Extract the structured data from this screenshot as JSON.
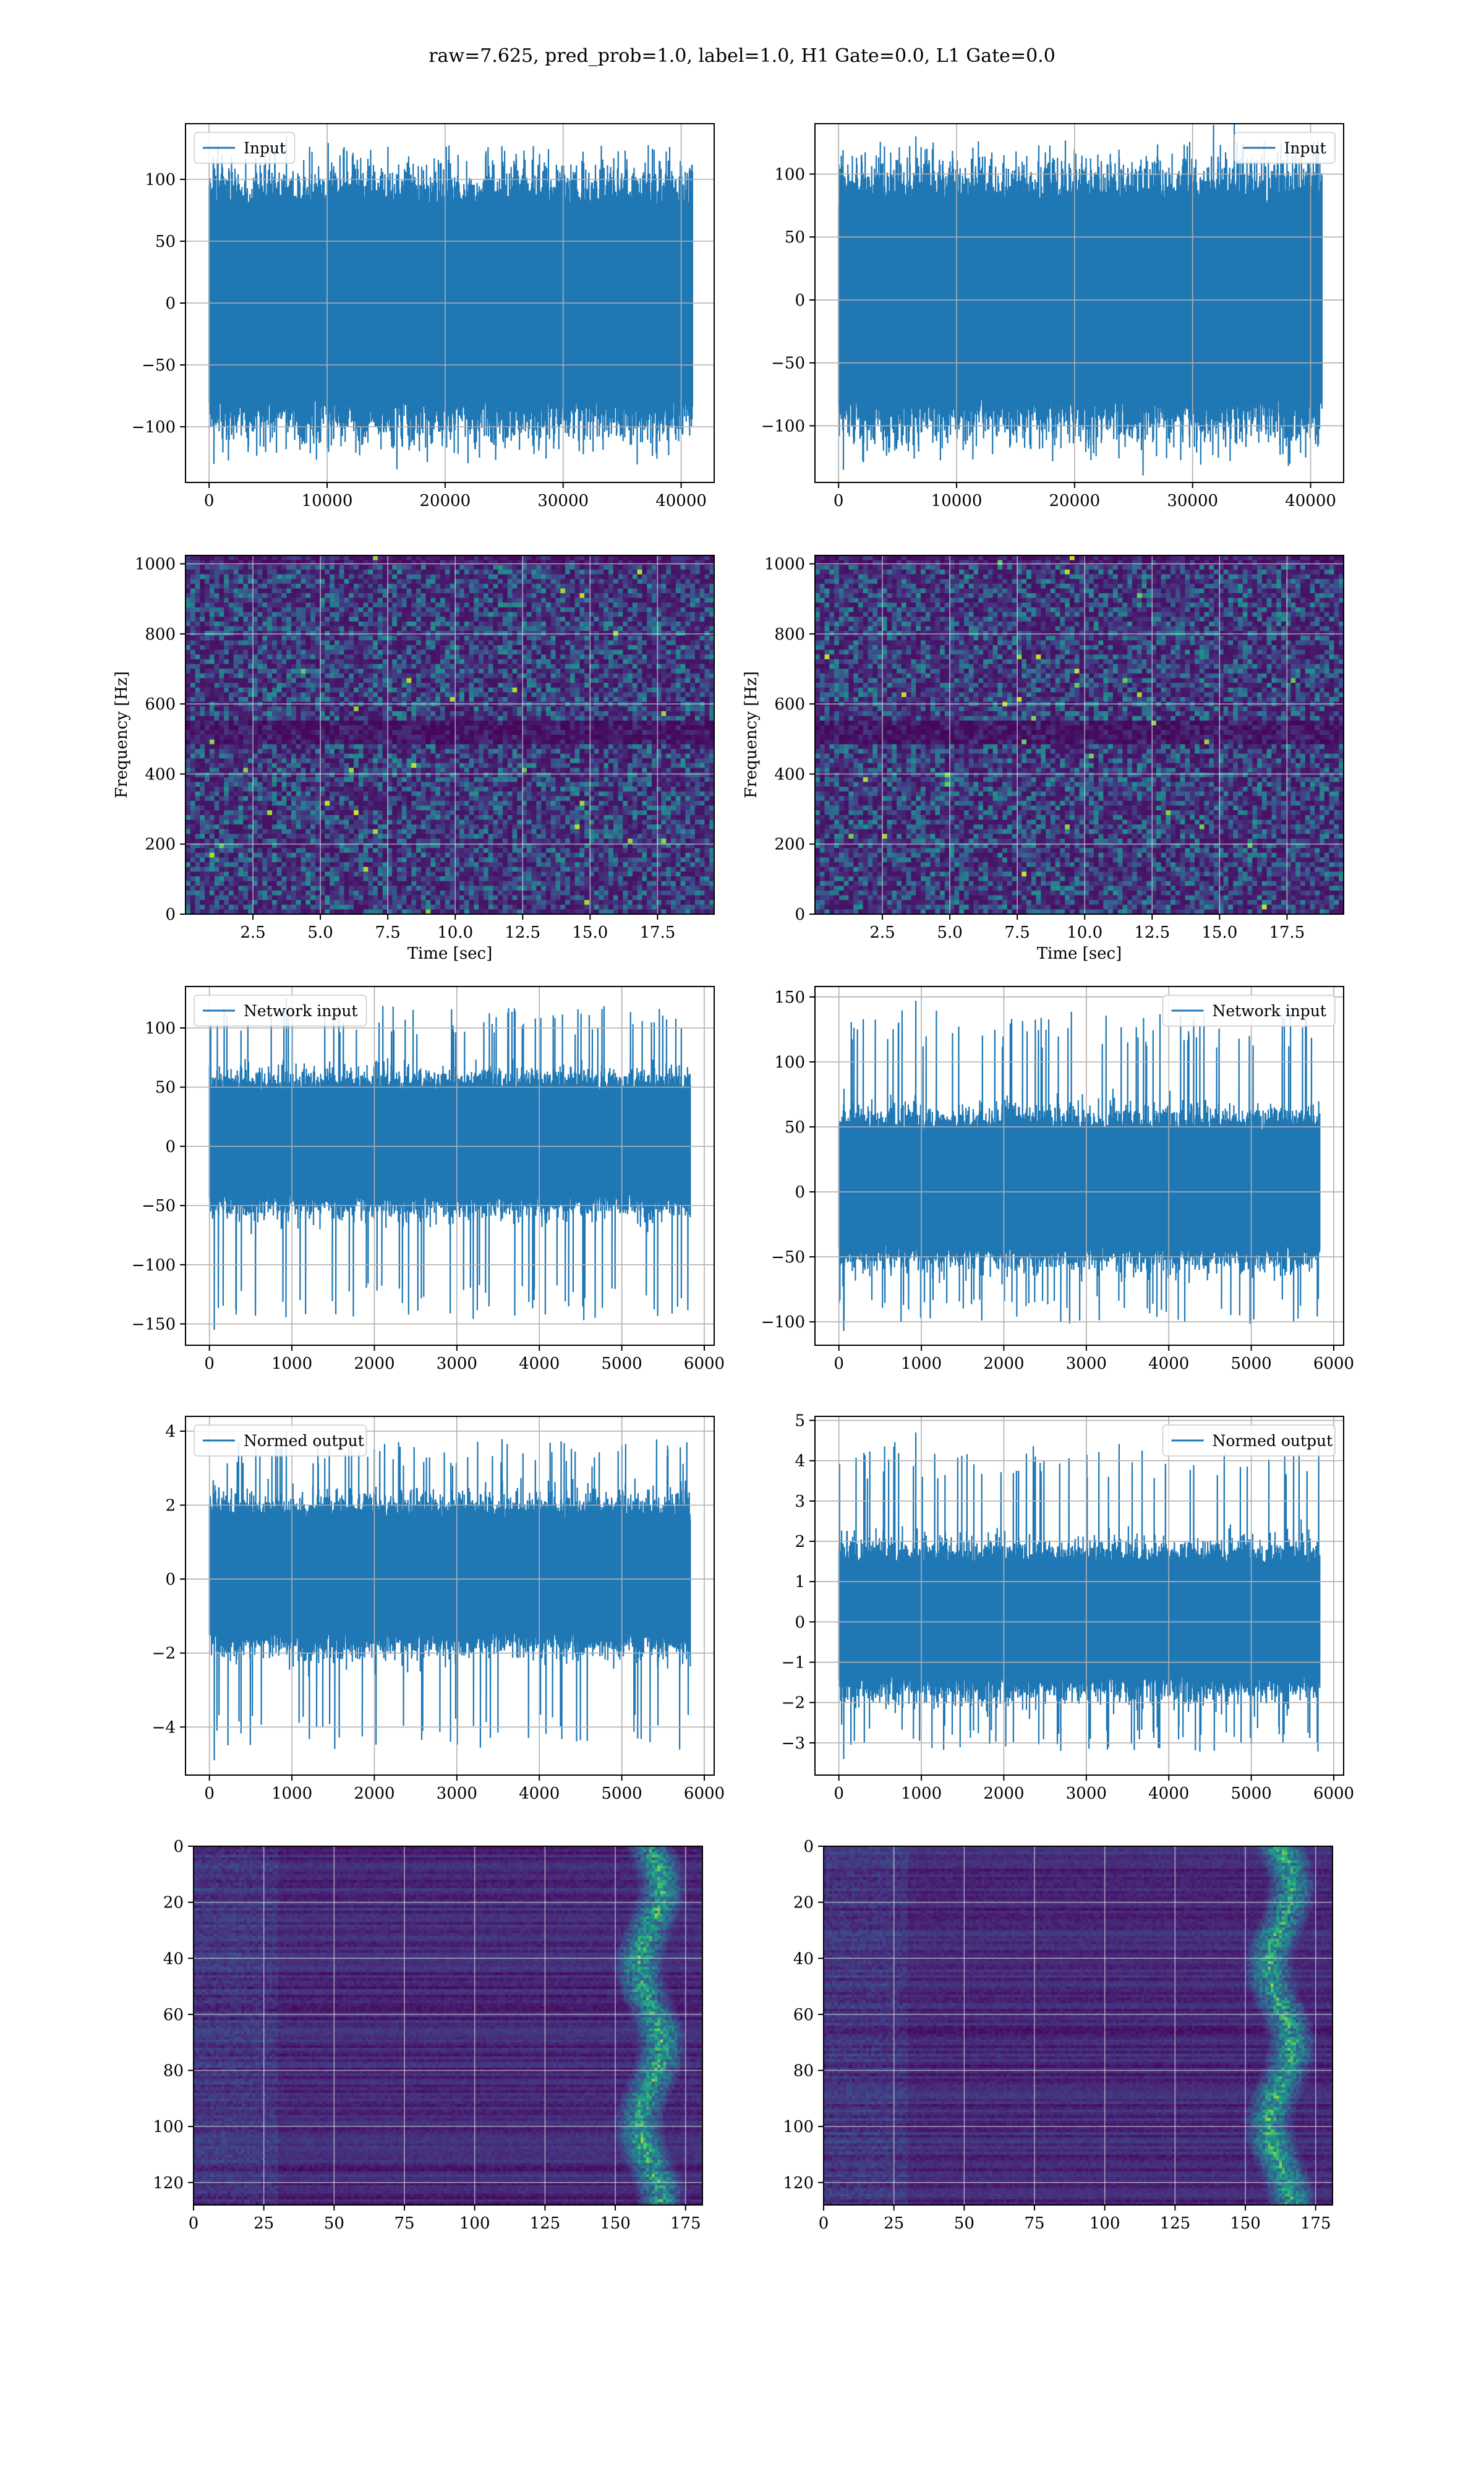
{
  "figure": {
    "title": "raw=7.625, pred_prob=1.0, label=1.0, H1 Gate=0.0, L1 Gate=0.0",
    "series_color": "#1f77b4",
    "heatmap_colormap": "viridis"
  },
  "chart_data": [
    {
      "id": "input-h1",
      "type": "line",
      "legend": "Input",
      "legend_loc": "upper-left",
      "xlim": [
        -2000,
        42800
      ],
      "ylim": [
        -145,
        145
      ],
      "xticks": [
        0,
        10000,
        20000,
        30000,
        40000
      ],
      "yticks": [
        -100,
        -50,
        0,
        50,
        100
      ],
      "n": 40960,
      "band": [
        -75,
        75
      ],
      "min": -130,
      "max": 135,
      "grid": true
    },
    {
      "id": "input-l1",
      "type": "line",
      "legend": "Input",
      "legend_loc": "upper-right",
      "xlim": [
        -2000,
        42800
      ],
      "ylim": [
        -145,
        140
      ],
      "xticks": [
        0,
        10000,
        20000,
        30000,
        40000
      ],
      "yticks": [
        -100,
        -50,
        0,
        50,
        100
      ],
      "n": 40960,
      "band": [
        -75,
        75
      ],
      "min": -135,
      "max": 130,
      "grid": true
    },
    {
      "id": "spectrogram-h1",
      "type": "heatmap",
      "xlabel": "Time [sec]",
      "ylabel": "Frequency [Hz]",
      "xlim": [
        0,
        19.6
      ],
      "ylim": [
        0,
        1024
      ],
      "xticks": [
        2.5,
        5.0,
        7.5,
        10.0,
        12.5,
        15.0,
        17.5
      ],
      "xtick_labels": [
        "2.5",
        "5.0",
        "7.5",
        "10.0",
        "12.5",
        "15.0",
        "17.5"
      ],
      "yticks": [
        0,
        200,
        400,
        600,
        800,
        1000
      ],
      "grid": true
    },
    {
      "id": "spectrogram-l1",
      "type": "heatmap",
      "xlabel": "Time [sec]",
      "ylabel": "Frequency [Hz]",
      "xlim": [
        0,
        19.6
      ],
      "ylim": [
        0,
        1024
      ],
      "xticks": [
        2.5,
        5.0,
        7.5,
        10.0,
        12.5,
        15.0,
        17.5
      ],
      "xtick_labels": [
        "2.5",
        "5.0",
        "7.5",
        "10.0",
        "12.5",
        "15.0",
        "17.5"
      ],
      "yticks": [
        0,
        200,
        400,
        600,
        800,
        1000
      ],
      "grid": true
    },
    {
      "id": "network-input-h1",
      "type": "line",
      "legend": "Network input",
      "legend_loc": "upper-left",
      "xlim": [
        -290,
        6120
      ],
      "ylim": [
        -168,
        135
      ],
      "xticks": [
        0,
        1000,
        2000,
        3000,
        4000,
        5000,
        6000
      ],
      "yticks": [
        -150,
        -100,
        -50,
        0,
        50,
        100
      ],
      "n": 5830,
      "band": [
        -40,
        45
      ],
      "min": -155,
      "max": 125,
      "grid": true
    },
    {
      "id": "network-input-l1",
      "type": "line",
      "legend": "Network input",
      "legend_loc": "upper-right",
      "xlim": [
        -290,
        6120
      ],
      "ylim": [
        -118,
        158
      ],
      "xticks": [
        0,
        1000,
        2000,
        3000,
        4000,
        5000,
        6000
      ],
      "yticks": [
        -100,
        -50,
        0,
        50,
        100,
        150
      ],
      "n": 5830,
      "band": [
        -40,
        45
      ],
      "min": -107,
      "max": 147,
      "grid": true
    },
    {
      "id": "normed-output-h1",
      "type": "line",
      "legend": "Normed output",
      "legend_loc": "upper-left",
      "xlim": [
        -290,
        6120
      ],
      "ylim": [
        -5.3,
        4.4
      ],
      "xticks": [
        0,
        1000,
        2000,
        3000,
        4000,
        5000,
        6000
      ],
      "yticks": [
        -4,
        -2,
        0,
        2,
        4
      ],
      "n": 5830,
      "band": [
        -1.4,
        1.6
      ],
      "min": -4.9,
      "max": 4.0,
      "grid": true
    },
    {
      "id": "normed-output-l1",
      "type": "line",
      "legend": "Normed output",
      "legend_loc": "upper-right",
      "xlim": [
        -290,
        6120
      ],
      "ylim": [
        -3.8,
        5.1
      ],
      "xticks": [
        0,
        1000,
        2000,
        3000,
        4000,
        5000,
        6000
      ],
      "yticks": [
        -3,
        -2,
        -1,
        0,
        1,
        2,
        3,
        4,
        5
      ],
      "n": 5830,
      "band": [
        -1.3,
        1.4
      ],
      "min": -3.4,
      "max": 4.7,
      "grid": true
    },
    {
      "id": "feature-map-h1",
      "type": "heatmap",
      "xlim": [
        0,
        181
      ],
      "ylim": [
        128,
        0
      ],
      "xticks": [
        0,
        25,
        50,
        75,
        100,
        125,
        150,
        175
      ],
      "yticks": [
        0,
        20,
        40,
        60,
        80,
        100,
        120
      ],
      "grid": true
    },
    {
      "id": "feature-map-l1",
      "type": "heatmap",
      "xlim": [
        0,
        181
      ],
      "ylim": [
        128,
        0
      ],
      "xticks": [
        0,
        25,
        50,
        75,
        100,
        125,
        150,
        175
      ],
      "yticks": [
        0,
        20,
        40,
        60,
        80,
        100,
        120
      ],
      "grid": true
    }
  ]
}
